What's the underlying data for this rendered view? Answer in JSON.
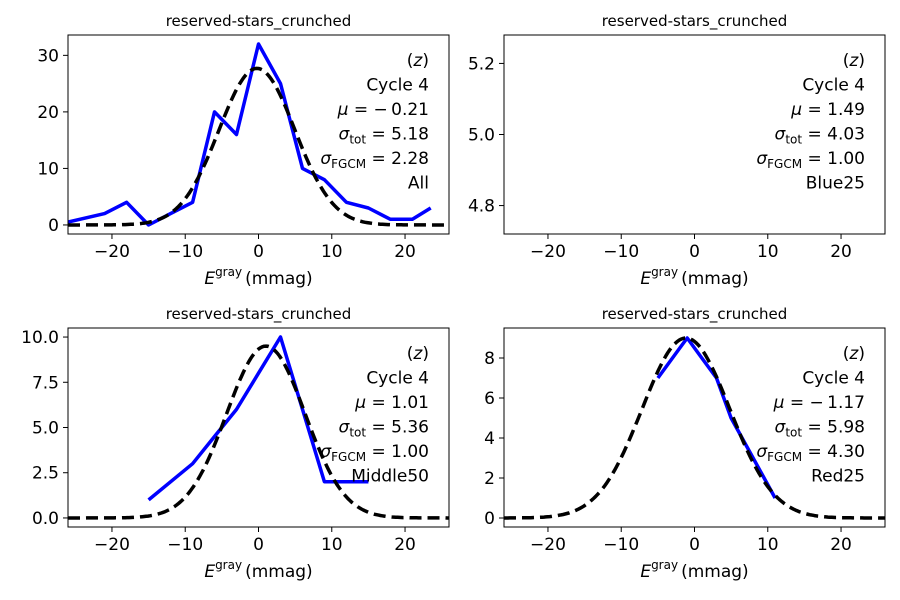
{
  "chart_data": [
    {
      "type": "line",
      "panel": "top-left",
      "title": "reserved-stars_crunched",
      "xlabel": {
        "main": "E",
        "sup": "gray",
        "unit": "(mmag)"
      },
      "ylabel": "",
      "xlim": [
        -26,
        26
      ],
      "ylim": [
        -1.6,
        33.6
      ],
      "xticks": [
        -20,
        -10,
        0,
        10,
        20
      ],
      "yticks": [
        0,
        10,
        20,
        30
      ],
      "grid": false,
      "annotations": {
        "band": "(z)",
        "cycle": "Cycle 4",
        "mu": "− 0.21",
        "sigma_tot": "5.18",
        "sigma_fgcm": "2.28",
        "subset": "All"
      },
      "series": [
        {
          "style": "solid",
          "color": "#0000ff",
          "x": [
            -26,
            -21,
            -18,
            -15,
            -12,
            -9,
            -6,
            -3,
            0,
            3,
            6,
            9,
            12,
            15,
            18,
            21,
            23.5
          ],
          "y": [
            0.5,
            2,
            4,
            0,
            2,
            4,
            20,
            16,
            32,
            25,
            10,
            8,
            4,
            3,
            1,
            1,
            3
          ]
        },
        {
          "style": "dashed",
          "color": "#000000",
          "model": "gaussian",
          "amplitude": 27.7,
          "mean": -0.21,
          "sigma": 5.18
        }
      ]
    },
    {
      "type": "line",
      "panel": "top-right",
      "title": "reserved-stars_crunched",
      "xlabel": {
        "main": "E",
        "sup": "gray",
        "unit": "(mmag)"
      },
      "ylabel": "",
      "xlim": [
        -26,
        26
      ],
      "ylim": [
        4.72,
        5.28
      ],
      "xticks": [
        -20,
        -10,
        0,
        10,
        20
      ],
      "yticks": [
        4.8,
        5.0,
        5.2
      ],
      "grid": false,
      "annotations": {
        "band": "(z)",
        "cycle": "Cycle 4",
        "mu": "1.49",
        "sigma_tot": "4.03",
        "sigma_fgcm": "1.00",
        "subset": "Blue25"
      },
      "series": []
    },
    {
      "type": "line",
      "panel": "bottom-left",
      "title": "reserved-stars_crunched",
      "xlabel": {
        "main": "E",
        "sup": "gray",
        "unit": "(mmag)"
      },
      "ylabel": "",
      "xlim": [
        -26,
        26
      ],
      "ylim": [
        -0.5,
        10.5
      ],
      "xticks": [
        -20,
        -10,
        0,
        10,
        20
      ],
      "yticks": [
        0.0,
        2.5,
        5.0,
        7.5,
        10.0
      ],
      "grid": false,
      "annotations": {
        "band": "(z)",
        "cycle": "Cycle 4",
        "mu": "1.01",
        "sigma_tot": "5.36",
        "sigma_fgcm": "1.00",
        "subset": "Middle50"
      },
      "series": [
        {
          "style": "solid",
          "color": "#0000ff",
          "x": [
            -15,
            -9,
            -6,
            -3,
            0,
            3,
            6,
            9,
            12,
            15
          ],
          "y": [
            1,
            3,
            4.5,
            6,
            8,
            10,
            6,
            2,
            2,
            2
          ]
        },
        {
          "style": "dashed",
          "color": "#000000",
          "model": "gaussian",
          "amplitude": 9.5,
          "mean": 1.01,
          "sigma": 5.36
        }
      ]
    },
    {
      "type": "line",
      "panel": "bottom-right",
      "title": "reserved-stars_crunched",
      "xlabel": {
        "main": "E",
        "sup": "gray",
        "unit": "(mmag)"
      },
      "ylabel": "",
      "xlim": [
        -26,
        26
      ],
      "ylim": [
        -0.45,
        9.5
      ],
      "xticks": [
        -20,
        -10,
        0,
        10,
        20
      ],
      "yticks": [
        0,
        2,
        4,
        6,
        8
      ],
      "grid": false,
      "annotations": {
        "band": "(z)",
        "cycle": "Cycle 4",
        "mu": "− 1.17",
        "sigma_tot": "5.98",
        "sigma_fgcm": "4.30",
        "subset": "Red25"
      },
      "series": [
        {
          "style": "solid",
          "color": "#0000ff",
          "x": [
            -5,
            -2,
            -1,
            1,
            3,
            5,
            8,
            11
          ],
          "y": [
            7,
            8.5,
            9,
            8,
            7,
            5,
            3,
            1
          ]
        },
        {
          "style": "dashed",
          "color": "#000000",
          "model": "gaussian",
          "amplitude": 9.0,
          "mean": -1.17,
          "sigma": 5.98
        }
      ]
    }
  ]
}
